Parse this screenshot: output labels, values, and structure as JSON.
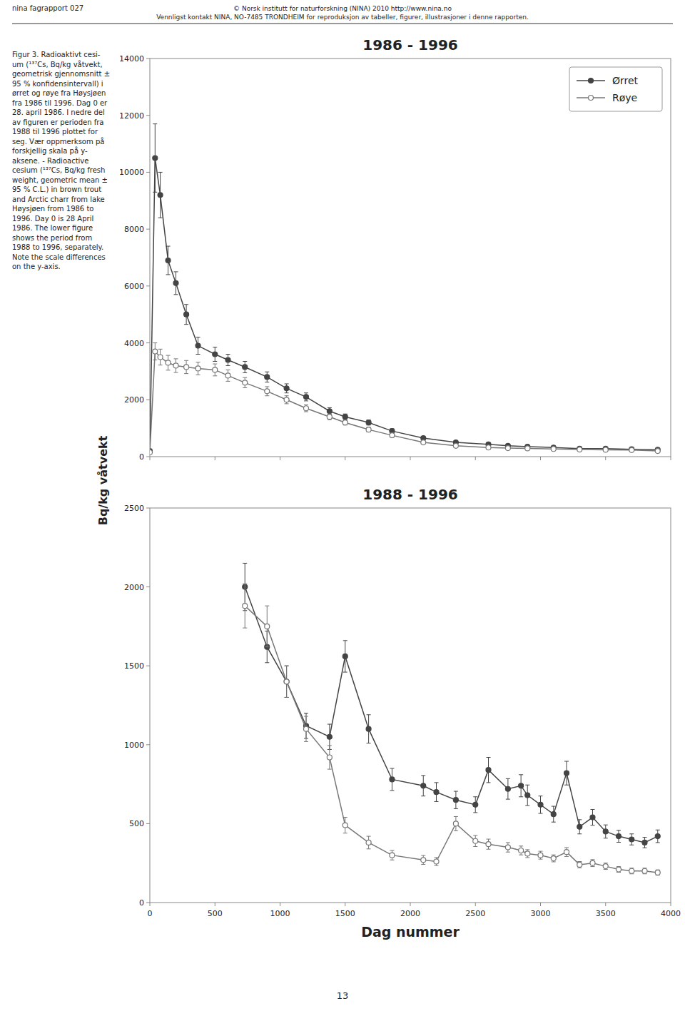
{
  "header": [
    "© Norsk institutt for naturforskning (NINA) 2010 http://www.nina.no",
    "Vennligst kontakt NINA, NO-7485 TRONDHEIM for reproduksjon av tabeller, figurer, illustrasjoner i denne rapporten."
  ],
  "left_label": "nina fagrapport 027",
  "page_number": "13",
  "caption": "Figur 3. Radioaktivt cesi-\num (¹³⁷Cs, Bq/kg våtvekt,\ngeometrisk gjennomsnitt ±\n95 % konfidensintervall) i\nørret og røye fra Høysjøen\nfra 1986 til 1996. Dag 0 er\n28. april 1986. I nedre del\nav figuren er perioden fra\n1988 til 1996 plottet for\nseg. Vær oppmerksom på\nforskjellig skala på y-\naksene. - Radioactive\ncesium (¹³⁷Cs, Bq/kg fresh\nweight, geometric mean ±\n95 % C.L.) in brown trout\nand Arctic charr from lake\nHøysjøen from 1986 to\n1996. Day 0 is 28 April\n1986. The lower figure\nshows the period from\n1988 to 1996, separately.\nNote the scale differences\non the y-axis.",
  "ylabel": "Bq/kg våtvekt",
  "chart_data": [
    {
      "type": "line",
      "title": "1986 - 1996",
      "x": [
        0,
        40,
        80,
        140,
        200,
        280,
        370,
        500,
        600,
        730,
        900,
        1050,
        1200,
        1380,
        1500,
        1680,
        1860,
        2100,
        2350,
        2600,
        2750,
        2900,
        3100,
        3300,
        3500,
        3700,
        3900
      ],
      "series": [
        {
          "name": "Ørret",
          "color": "#444444",
          "marker": "circle",
          "values": [
            200,
            10500,
            9200,
            6900,
            6100,
            5000,
            3900,
            3600,
            3400,
            3150,
            2800,
            2400,
            2100,
            1600,
            1400,
            1200,
            900,
            650,
            500,
            430,
            380,
            350,
            320,
            280,
            280,
            260,
            240
          ],
          "errors": [
            50,
            1200,
            800,
            500,
            400,
            350,
            300,
            250,
            200,
            200,
            180,
            160,
            140,
            120,
            100,
            90,
            80,
            60,
            50,
            40,
            35,
            30,
            30,
            25,
            25,
            25,
            25
          ]
        },
        {
          "name": "Røye",
          "color": "#777777",
          "marker": "open-circle",
          "values": [
            150,
            3700,
            3500,
            3300,
            3200,
            3150,
            3100,
            3050,
            2850,
            2600,
            2300,
            2000,
            1700,
            1400,
            1200,
            950,
            750,
            500,
            380,
            320,
            300,
            290,
            270,
            250,
            240,
            230,
            200
          ],
          "errors": [
            30,
            300,
            280,
            260,
            240,
            230,
            220,
            210,
            200,
            180,
            160,
            140,
            120,
            100,
            90,
            80,
            70,
            55,
            45,
            35,
            30,
            28,
            25,
            22,
            22,
            20,
            18
          ]
        }
      ],
      "xlim": [
        0,
        4000
      ],
      "xticks": [
        0,
        500,
        1000,
        1500,
        2000,
        2500,
        3000,
        3500,
        4000
      ],
      "ylim": [
        0,
        14000
      ],
      "yticks": [
        0,
        2000,
        4000,
        6000,
        8000,
        10000,
        12000,
        14000
      ],
      "tick_labels": "y",
      "legend": "upper-right",
      "grid": false
    },
    {
      "type": "line",
      "title": "1988 - 1996",
      "xlabel": "Dag nummer",
      "x": [
        730,
        900,
        1050,
        1200,
        1380,
        1500,
        1680,
        1860,
        2100,
        2200,
        2350,
        2500,
        2600,
        2750,
        2850,
        2900,
        3000,
        3100,
        3200,
        3300,
        3400,
        3500,
        3600,
        3700,
        3800,
        3900
      ],
      "series": [
        {
          "color": "#444444",
          "marker": "circle",
          "values": [
            2000,
            1620,
            1400,
            1120,
            1050,
            1560,
            1100,
            780,
            740,
            700,
            650,
            620,
            840,
            720,
            740,
            680,
            620,
            560,
            820,
            480,
            540,
            450,
            420,
            400,
            380,
            420
          ],
          "errors": [
            150,
            100,
            100,
            80,
            80,
            100,
            90,
            70,
            65,
            60,
            55,
            50,
            80,
            65,
            70,
            65,
            55,
            50,
            75,
            45,
            50,
            42,
            38,
            35,
            33,
            40
          ]
        },
        {
          "color": "#777777",
          "marker": "open-circle",
          "values": [
            1880,
            1750,
            1400,
            1100,
            920,
            490,
            380,
            300,
            270,
            260,
            500,
            390,
            370,
            350,
            330,
            310,
            300,
            280,
            320,
            240,
            250,
            230,
            210,
            200,
            200,
            190
          ],
          "errors": [
            140,
            130,
            100,
            80,
            75,
            50,
            40,
            30,
            28,
            25,
            45,
            35,
            32,
            30,
            28,
            25,
            25,
            22,
            28,
            20,
            22,
            20,
            18,
            18,
            18,
            17
          ]
        }
      ],
      "xlim": [
        0,
        4000
      ],
      "xticks": [
        0,
        500,
        1000,
        1500,
        2000,
        2500,
        3000,
        3500,
        4000
      ],
      "ylim": [
        0,
        2500
      ],
      "yticks": [
        0,
        500,
        1000,
        1500,
        2000,
        2500
      ],
      "grid": false
    }
  ]
}
